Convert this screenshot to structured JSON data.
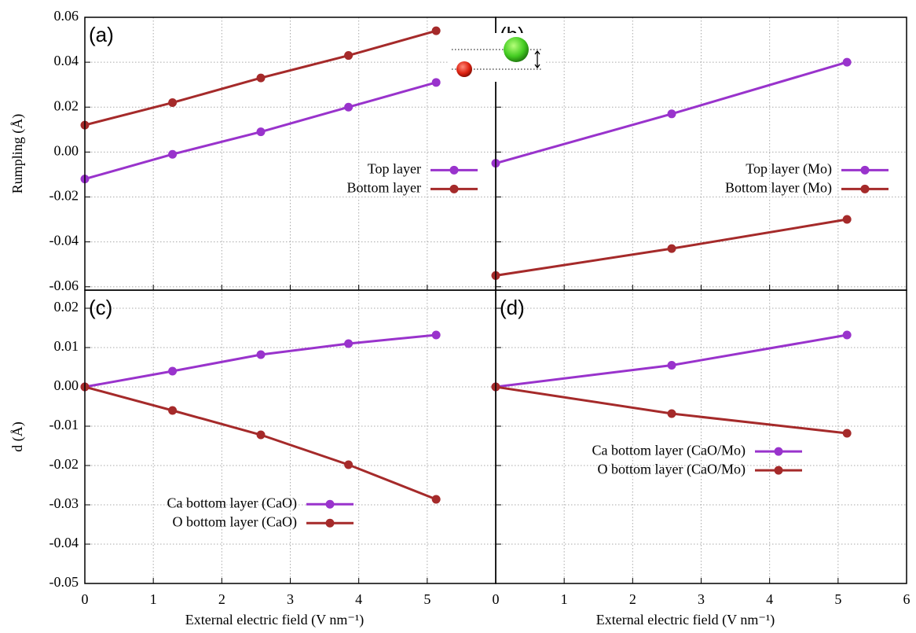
{
  "chart_data": [
    {
      "type": "line",
      "panel_label": "(a)",
      "ylabel": "Rumpling (Å)",
      "x": [
        0,
        1.28,
        2.57,
        3.85,
        5.13
      ],
      "series": [
        {
          "name": "Top layer",
          "color": "#9933cc",
          "values": [
            -0.012,
            -0.001,
            0.009,
            0.02,
            0.031
          ]
        },
        {
          "name": "Bottom layer",
          "color": "#a52a2a",
          "values": [
            0.012,
            0.022,
            0.033,
            0.043,
            0.054
          ]
        }
      ],
      "xlim": [
        0,
        6
      ],
      "xticks": [
        0,
        1,
        2,
        3,
        4,
        5
      ],
      "show_xtick_labels": false,
      "ylim": [
        -0.0615,
        0.06
      ],
      "yticks": [
        0.06,
        0.04,
        0.02,
        {
          "value": 0,
          "label": "0.00"
        },
        -0.02,
        -0.04,
        -0.06
      ],
      "show_ytick_labels": true,
      "grid": true,
      "legend": "center right"
    },
    {
      "type": "line",
      "panel_label": "(b)",
      "x": [
        0,
        2.57,
        5.13
      ],
      "series": [
        {
          "name": "Top layer (Mo)",
          "color": "#9933cc",
          "values": [
            -0.005,
            0.017,
            0.04
          ]
        },
        {
          "name": "Bottom layer (Mo)",
          "color": "#a52a2a",
          "values": [
            -0.055,
            -0.043,
            -0.03
          ]
        }
      ],
      "xlim": [
        0,
        6
      ],
      "xticks": [
        0,
        1,
        2,
        3,
        4,
        5,
        6
      ],
      "show_xtick_labels": false,
      "ylim": [
        -0.0615,
        0.06
      ],
      "yticks": [
        0.06,
        0.04,
        0.02,
        0,
        -0.02,
        -0.04,
        -0.06
      ],
      "show_ytick_labels": false,
      "grid": true,
      "legend": "center right"
    },
    {
      "type": "line",
      "panel_label": "(c)",
      "ylabel": "d (Å)",
      "xlabel": "External electric field (V nm⁻¹)",
      "x": [
        0,
        1.28,
        2.57,
        3.85,
        5.13
      ],
      "series": [
        {
          "name": "Ca bottom layer (CaO)",
          "color": "#9933cc",
          "values": [
            0,
            0.004,
            0.0082,
            0.011,
            0.0132
          ]
        },
        {
          "name": "O bottom layer (CaO)",
          "color": "#a52a2a",
          "values": [
            0,
            -0.006,
            -0.0122,
            -0.0198,
            -0.0286
          ]
        }
      ],
      "xlim": [
        0,
        6
      ],
      "xticks": [
        0,
        1,
        2,
        3,
        4,
        5
      ],
      "show_xtick_labels": true,
      "ylim": [
        -0.05,
        0.0246
      ],
      "yticks": [
        0.02,
        0.01,
        {
          "value": 0,
          "label": "0.00"
        },
        -0.01,
        -0.02,
        -0.03,
        -0.04,
        -0.05
      ],
      "show_ytick_labels": true,
      "grid": true,
      "legend": "lower left"
    },
    {
      "type": "line",
      "panel_label": "(d)",
      "xlabel": "External electric field (V nm⁻¹)",
      "x": [
        0,
        2.57,
        5.13
      ],
      "series": [
        {
          "name": "Ca bottom layer (CaO/Mo)",
          "color": "#9933cc",
          "values": [
            0,
            0.0055,
            0.0132
          ]
        },
        {
          "name": "O bottom layer (CaO/Mo)",
          "color": "#a52a2a",
          "values": [
            0,
            -0.0068,
            -0.0118
          ]
        }
      ],
      "xlim": [
        0,
        6
      ],
      "xticks": [
        0,
        1,
        2,
        3,
        4,
        5,
        6
      ],
      "show_xtick_labels": true,
      "ylim": [
        -0.05,
        0.0246
      ],
      "yticks": [
        0.02,
        0.01,
        0,
        -0.01,
        -0.02,
        -0.03,
        -0.04,
        -0.05
      ],
      "show_ytick_labels": false,
      "grid": true,
      "legend": "center"
    }
  ]
}
